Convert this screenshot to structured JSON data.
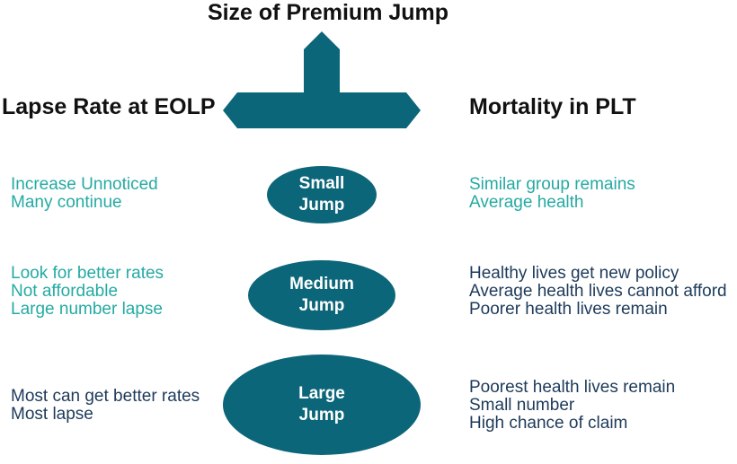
{
  "titles": {
    "top": "Size of Premium Jump",
    "left": "Lapse Rate at EOLP",
    "right": "Mortality in PLT"
  },
  "colors": {
    "shape_fill": "#0c6679",
    "teal_text": "#25aaa3",
    "navy_text": "#1d3a5a"
  },
  "rows": [
    {
      "jump": [
        "Small",
        "Jump"
      ],
      "lapse": [
        "Increase Unnoticed",
        "Many continue"
      ],
      "mortality": [
        "Similar group remains",
        "Average health"
      ]
    },
    {
      "jump": [
        "Medium",
        "Jump"
      ],
      "lapse": [
        "Look for better rates",
        "Not affordable",
        "Large number lapse"
      ],
      "mortality": [
        "Healthy lives get new policy",
        "Average health lives cannot afford",
        "Poorer health lives remain"
      ]
    },
    {
      "jump": [
        "Large",
        "Jump"
      ],
      "lapse": [
        "Most can get better rates",
        "Most lapse"
      ],
      "mortality": [
        "Poorest health lives remain",
        "Small number",
        "High chance of claim"
      ]
    }
  ]
}
